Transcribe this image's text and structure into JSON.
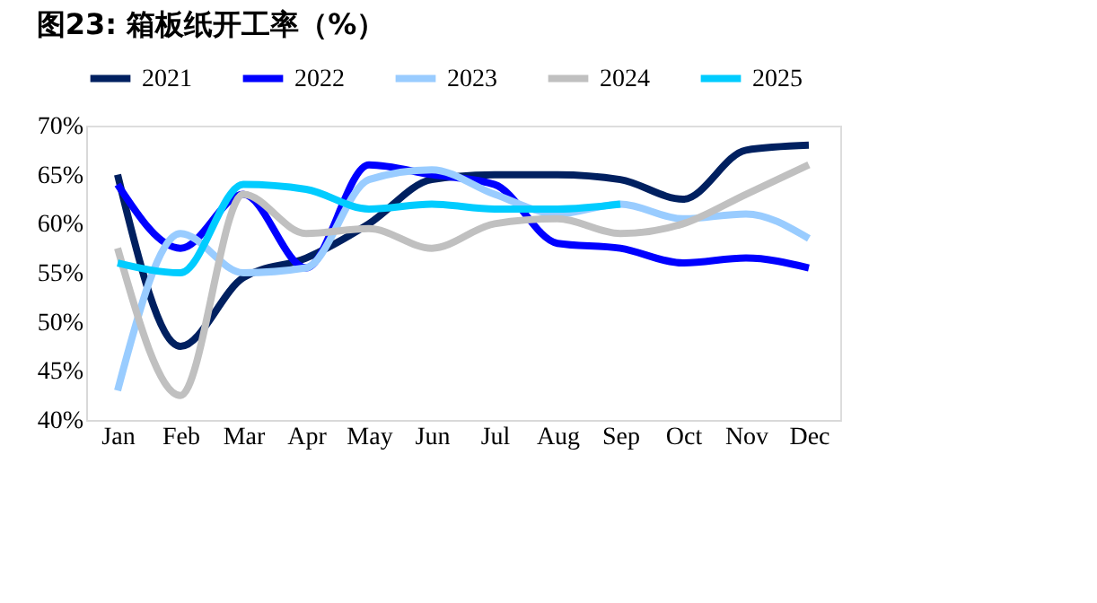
{
  "chart_data": {
    "type": "line",
    "title": "图23:  箱板纸开工率（%）",
    "categories": [
      "Jan",
      "Feb",
      "Mar",
      "Apr",
      "May",
      "Jun",
      "Jul",
      "Aug",
      "Sep",
      "Oct",
      "Nov",
      "Dec"
    ],
    "series": [
      {
        "name": "2021",
        "color": "#002060",
        "values": [
          65,
          47.5,
          54.5,
          56.5,
          60,
          64.5,
          65,
          65,
          64.5,
          62.5,
          67.5,
          68
        ]
      },
      {
        "name": "2022",
        "color": "#0000ff",
        "values": [
          64,
          57.5,
          63,
          55.5,
          66,
          65,
          64,
          58,
          57.5,
          56,
          56.5,
          55.5
        ]
      },
      {
        "name": "2023",
        "color": "#99ccff",
        "values": [
          43,
          59,
          55,
          55.5,
          64.5,
          65.5,
          63,
          61,
          62,
          60.5,
          61,
          58.5
        ]
      },
      {
        "name": "2024",
        "color": "#c0c0c0",
        "values": [
          57.5,
          42.5,
          63,
          59,
          59.5,
          57.5,
          60,
          60.5,
          59,
          60,
          63,
          66
        ]
      },
      {
        "name": "2025",
        "color": "#00ccff",
        "values": [
          56,
          55,
          64,
          63.5,
          61.5,
          62,
          61.5,
          61.5,
          62,
          null,
          null,
          null
        ]
      }
    ],
    "ylim": [
      40,
      70
    ],
    "yticks": [
      {
        "value": 40,
        "label": "40%"
      },
      {
        "value": 45,
        "label": "45%"
      },
      {
        "value": 50,
        "label": "50%"
      },
      {
        "value": 55,
        "label": "55%"
      },
      {
        "value": 60,
        "label": "60%"
      },
      {
        "value": 65,
        "label": "65%"
      },
      {
        "value": 70,
        "label": "70%"
      }
    ],
    "grid": false,
    "legend": "top",
    "marker": "none",
    "line_style": "solid"
  }
}
